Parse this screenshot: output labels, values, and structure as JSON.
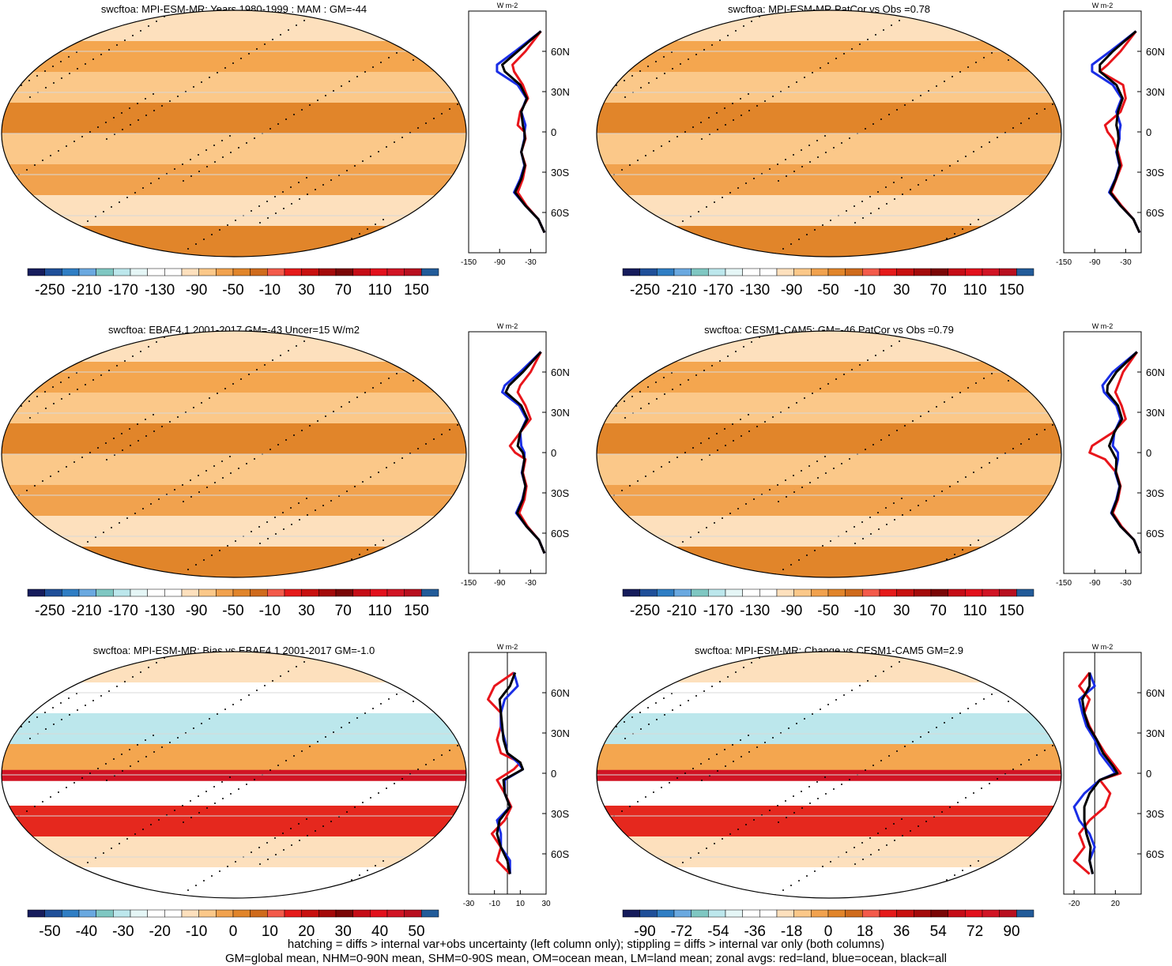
{
  "figure": {
    "variable": "swcftoa",
    "footnote_line1": "hatching = diffs > internal var+obs uncertainty (left column only); stippling = diffs > internal var only (both columns)",
    "footnote_line2": "GM=global mean, NHM=0-90N mean, SHM=0-90S mean, OM=ocean mean, LM=land mean; zonal avgs: red=land, blue=ocean, black=all",
    "series_colors": {
      "land": "#e8151b",
      "ocean": "#1a2ee6",
      "all": "#000000"
    }
  },
  "chart_data": [
    {
      "type": "map",
      "title": "swcftoa: MPI-ESM-MR: Years 1980-1999 : MAM : GM=-44",
      "colorbar": {
        "labels": [
          "-250",
          "-210",
          "-170",
          "-130",
          "-90",
          "-50",
          "-10",
          "30",
          "70",
          "110",
          "150"
        ],
        "colors": [
          "#161c5c",
          "#1f4f99",
          "#2f7ec4",
          "#6aa9e0",
          "#7fc7c2",
          "#bce7ec",
          "#e5f6f6",
          "#ffffff",
          "#ffffff",
          "#fde0bd",
          "#fbc889",
          "#f1a24e",
          "#e1852a",
          "#cf6b1c",
          "#f35a4a",
          "#e51a1a",
          "#c8100f",
          "#a40a0a",
          "#7a0606",
          "#c50c16",
          "#e2101c",
          "#d11424",
          "#b80f1f",
          "#225b99"
        ]
      },
      "zonal": {
        "lat_ticks": [
          "60N",
          "30N",
          "0",
          "30S",
          "60S"
        ],
        "x_ticks": [
          "-150",
          "-90",
          "-30"
        ],
        "xlim": [
          -150,
          0
        ],
        "units": "W m-2",
        "lat": [
          75,
          60,
          50,
          45,
          35,
          25,
          15,
          5,
          0,
          -5,
          -15,
          -25,
          -35,
          -45,
          -55,
          -65,
          -75
        ],
        "land": [
          -10,
          -40,
          -65,
          -62,
          -45,
          -35,
          -50,
          -55,
          -42,
          -40,
          -48,
          -40,
          -45,
          -55,
          -38,
          -15,
          -3
        ],
        "ocean": [
          -10,
          -60,
          -95,
          -95,
          -55,
          -38,
          -48,
          -40,
          -42,
          -42,
          -48,
          -42,
          -50,
          -62,
          -40,
          -15,
          -3
        ],
        "all": [
          -10,
          -55,
          -85,
          -80,
          -50,
          -37,
          -48,
          -45,
          -42,
          -41,
          -48,
          -41,
          -48,
          -60,
          -40,
          -15,
          -3
        ]
      }
    },
    {
      "type": "map",
      "title": "swcftoa: MPI-ESM-MR PatCor vs Obs =0.78",
      "colorbar": {
        "labels": [
          "-250",
          "-210",
          "-170",
          "-130",
          "-90",
          "-50",
          "-10",
          "30",
          "70",
          "110",
          "150"
        ],
        "colors": [
          "#161c5c",
          "#1f4f99",
          "#2f7ec4",
          "#6aa9e0",
          "#7fc7c2",
          "#bce7ec",
          "#e5f6f6",
          "#ffffff",
          "#ffffff",
          "#fde0bd",
          "#fbc889",
          "#f1a24e",
          "#e1852a",
          "#cf6b1c",
          "#f35a4a",
          "#e51a1a",
          "#c8100f",
          "#a40a0a",
          "#7a0606",
          "#c50c16",
          "#e2101c",
          "#d11424",
          "#b80f1f",
          "#225b99"
        ]
      },
      "zonal": {
        "lat_ticks": [
          "60N",
          "30N",
          "0",
          "30S",
          "60S"
        ],
        "x_ticks": [
          "-150",
          "-90",
          "-30"
        ],
        "xlim": [
          -150,
          0
        ],
        "units": "W m-2",
        "lat": [
          75,
          60,
          50,
          45,
          35,
          25,
          15,
          5,
          0,
          -5,
          -15,
          -25,
          -35,
          -45,
          -55,
          -65,
          -75
        ],
        "land": [
          -10,
          -40,
          -65,
          -80,
          -35,
          -30,
          -40,
          -70,
          -65,
          -55,
          -45,
          -38,
          -48,
          -58,
          -38,
          -15,
          -3
        ],
        "ocean": [
          -10,
          -60,
          -95,
          -95,
          -55,
          -38,
          -48,
          -40,
          -42,
          -42,
          -48,
          -42,
          -50,
          -62,
          -40,
          -15,
          -3
        ],
        "all": [
          -10,
          -55,
          -80,
          -80,
          -48,
          -36,
          -45,
          -48,
          -45,
          -44,
          -47,
          -41,
          -49,
          -60,
          -40,
          -15,
          -3
        ]
      }
    },
    {
      "type": "map",
      "title": "swcftoa: EBAF4.1 2001-2017 GM=-43 Uncer=15 W/m2",
      "colorbar": {
        "labels": [
          "-250",
          "-210",
          "-170",
          "-130",
          "-90",
          "-50",
          "-10",
          "30",
          "70",
          "110",
          "150"
        ],
        "colors": [
          "#161c5c",
          "#1f4f99",
          "#2f7ec4",
          "#6aa9e0",
          "#7fc7c2",
          "#bce7ec",
          "#e5f6f6",
          "#ffffff",
          "#ffffff",
          "#fde0bd",
          "#fbc889",
          "#f1a24e",
          "#e1852a",
          "#cf6b1c",
          "#f35a4a",
          "#e51a1a",
          "#c8100f",
          "#a40a0a",
          "#7a0606",
          "#c50c16",
          "#e2101c",
          "#d11424",
          "#b80f1f",
          "#225b99"
        ]
      },
      "zonal": {
        "lat_ticks": [
          "60N",
          "30N",
          "0",
          "30S",
          "60S"
        ],
        "x_ticks": [
          "-150",
          "-90",
          "-30"
        ],
        "xlim": [
          -150,
          0
        ],
        "units": "W m-2",
        "lat": [
          75,
          60,
          50,
          45,
          35,
          25,
          15,
          5,
          0,
          -5,
          -15,
          -25,
          -35,
          -45,
          -55,
          -65,
          -75
        ],
        "land": [
          -10,
          -30,
          -50,
          -55,
          -40,
          -30,
          -50,
          -70,
          -60,
          -40,
          -45,
          -38,
          -42,
          -52,
          -36,
          -14,
          -3
        ],
        "ocean": [
          -10,
          -50,
          -80,
          -85,
          -52,
          -38,
          -50,
          -48,
          -42,
          -42,
          -47,
          -40,
          -46,
          -58,
          -38,
          -14,
          -3
        ],
        "all": [
          -10,
          -45,
          -72,
          -78,
          -48,
          -36,
          -50,
          -55,
          -45,
          -42,
          -46,
          -40,
          -45,
          -56,
          -38,
          -14,
          -3
        ]
      }
    },
    {
      "type": "map",
      "title": "swcftoa: CESM1-CAM5: GM=-46 PatCor vs Obs =0.79",
      "colorbar": {
        "labels": [
          "-250",
          "-210",
          "-170",
          "-130",
          "-90",
          "-50",
          "-10",
          "30",
          "70",
          "110",
          "150"
        ],
        "colors": [
          "#161c5c",
          "#1f4f99",
          "#2f7ec4",
          "#6aa9e0",
          "#7fc7c2",
          "#bce7ec",
          "#e5f6f6",
          "#ffffff",
          "#ffffff",
          "#fde0bd",
          "#fbc889",
          "#f1a24e",
          "#e1852a",
          "#cf6b1c",
          "#f35a4a",
          "#e51a1a",
          "#c8100f",
          "#a40a0a",
          "#7a0606",
          "#c50c16",
          "#e2101c",
          "#d11424",
          "#b80f1f",
          "#225b99"
        ]
      },
      "zonal": {
        "lat_ticks": [
          "60N",
          "30N",
          "0",
          "30S",
          "60S"
        ],
        "x_ticks": [
          "-150",
          "-90",
          "-30"
        ],
        "xlim": [
          -150,
          0
        ],
        "units": "W m-2",
        "lat": [
          75,
          60,
          50,
          45,
          35,
          25,
          15,
          5,
          0,
          -5,
          -15,
          -25,
          -35,
          -45,
          -55,
          -65,
          -75
        ],
        "land": [
          -8,
          -35,
          -45,
          -50,
          -38,
          -30,
          -55,
          -95,
          -100,
          -70,
          -48,
          -40,
          -45,
          -55,
          -38,
          -14,
          -3
        ],
        "ocean": [
          -8,
          -55,
          -75,
          -72,
          -48,
          -40,
          -52,
          -55,
          -45,
          -45,
          -50,
          -42,
          -48,
          -58,
          -40,
          -14,
          -3
        ],
        "all": [
          -8,
          -48,
          -65,
          -66,
          -45,
          -37,
          -52,
          -62,
          -55,
          -48,
          -49,
          -41,
          -47,
          -57,
          -40,
          -14,
          -3
        ]
      }
    },
    {
      "type": "map",
      "title": "swcftoa: MPI-ESM-MR: Bias vs EBAF4.1 2001-2017 GM=-1.0",
      "colorbar": {
        "labels": [
          "-50",
          "-40",
          "-30",
          "-20",
          "-10",
          "0",
          "10",
          "20",
          "30",
          "40",
          "50"
        ],
        "colors": [
          "#161c5c",
          "#1f4f99",
          "#2f7ec4",
          "#6aa9e0",
          "#7fc7c2",
          "#bce7ec",
          "#e5f6f6",
          "#ffffff",
          "#ffffff",
          "#fde0bd",
          "#fbc889",
          "#f1a24e",
          "#e1852a",
          "#cf6b1c",
          "#f35a4a",
          "#e51a1a",
          "#c8100f",
          "#a40a0a",
          "#7a0606",
          "#c50c16",
          "#e2101c",
          "#d11424",
          "#b80f1f",
          "#225b99"
        ]
      },
      "zonal": {
        "lat_ticks": [
          "60N",
          "30N",
          "0",
          "30S",
          "60S"
        ],
        "x_ticks": [
          "-30",
          "-10",
          "10",
          "30"
        ],
        "xlim": [
          -30,
          30
        ],
        "units": "W m-2",
        "lat": [
          75,
          65,
          55,
          45,
          35,
          25,
          15,
          8,
          3,
          -5,
          -15,
          -25,
          -35,
          -45,
          -55,
          -65,
          -75
        ],
        "land": [
          5,
          -10,
          -15,
          -5,
          -5,
          -8,
          -5,
          10,
          5,
          -8,
          -2,
          3,
          -2,
          -12,
          -5,
          -8,
          2
        ],
        "ocean": [
          5,
          8,
          -2,
          -5,
          -5,
          -2,
          0,
          8,
          12,
          -2,
          -2,
          2,
          -8,
          -5,
          -5,
          2,
          2
        ],
        "all": [
          6,
          2,
          -6,
          -5,
          -4,
          -3,
          0,
          10,
          12,
          -3,
          -2,
          2,
          -6,
          -8,
          -5,
          0,
          2
        ]
      }
    },
    {
      "type": "map",
      "title": "swcftoa: MPI-ESM-MR: Change vs CESM1-CAM5 GM=2.9",
      "colorbar": {
        "labels": [
          "-90",
          "-72",
          "-54",
          "-36",
          "-18",
          "0",
          "18",
          "36",
          "54",
          "72",
          "90"
        ],
        "colors": [
          "#161c5c",
          "#1f4f99",
          "#2f7ec4",
          "#6aa9e0",
          "#7fc7c2",
          "#bce7ec",
          "#e5f6f6",
          "#ffffff",
          "#ffffff",
          "#fde0bd",
          "#fbc889",
          "#f1a24e",
          "#e1852a",
          "#cf6b1c",
          "#f35a4a",
          "#e51a1a",
          "#c8100f",
          "#a40a0a",
          "#7a0606",
          "#c50c16",
          "#e2101c",
          "#d11424",
          "#b80f1f",
          "#225b99"
        ]
      },
      "zonal": {
        "lat_ticks": [
          "60N",
          "30N",
          "0",
          "30S",
          "60S"
        ],
        "x_ticks": [
          "-20",
          "20"
        ],
        "xlim": [
          -30,
          45
        ],
        "units": "W m-2",
        "lat": [
          75,
          65,
          55,
          45,
          35,
          25,
          15,
          5,
          0,
          -5,
          -15,
          -25,
          -35,
          -45,
          -55,
          -65,
          -75
        ],
        "land": [
          -5,
          -15,
          -5,
          -10,
          -5,
          2,
          10,
          20,
          25,
          5,
          15,
          10,
          -5,
          -15,
          -10,
          -20,
          -5
        ],
        "ocean": [
          -5,
          0,
          -15,
          -12,
          -8,
          0,
          5,
          15,
          20,
          5,
          -10,
          -20,
          -15,
          -5,
          0,
          -5,
          -2
        ],
        "all": [
          -5,
          -5,
          -12,
          -10,
          -6,
          2,
          8,
          18,
          22,
          5,
          -5,
          -10,
          -10,
          -8,
          -4,
          -5,
          -2
        ]
      }
    }
  ]
}
